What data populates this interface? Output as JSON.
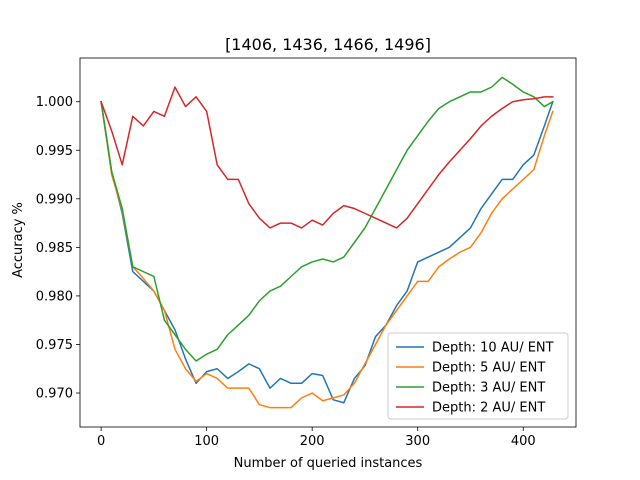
{
  "chart_data": {
    "type": "line",
    "title": "[1406, 1436, 1466, 1496]",
    "xlabel": "Number of queried instances",
    "ylabel": "Accuracy %",
    "xlim": [
      -20,
      450
    ],
    "ylim": [
      0.9665,
      1.0045
    ],
    "xticks": [
      0,
      100,
      200,
      300,
      400
    ],
    "yticks": [
      0.97,
      0.975,
      0.98,
      0.985,
      0.99,
      0.995,
      1.0
    ],
    "ytick_labels": [
      "0.970",
      "0.975",
      "0.980",
      "0.985",
      "0.990",
      "0.995",
      "1.000"
    ],
    "grid": false,
    "legend_position": "lower-right",
    "series": [
      {
        "name": "Depth: 10 AU/ ENT",
        "color": "#1f77b4",
        "x": [
          0,
          10,
          20,
          30,
          40,
          50,
          60,
          70,
          80,
          90,
          100,
          110,
          120,
          130,
          140,
          150,
          160,
          170,
          180,
          190,
          200,
          210,
          220,
          230,
          240,
          250,
          260,
          270,
          280,
          290,
          300,
          310,
          320,
          330,
          340,
          350,
          360,
          370,
          380,
          390,
          400,
          410,
          420,
          428
        ],
        "y": [
          1.0,
          0.9928,
          0.9885,
          0.9825,
          0.9815,
          0.9805,
          0.9785,
          0.9765,
          0.9735,
          0.971,
          0.9722,
          0.9725,
          0.9715,
          0.9722,
          0.973,
          0.9725,
          0.9705,
          0.9715,
          0.971,
          0.971,
          0.972,
          0.9718,
          0.9693,
          0.969,
          0.9715,
          0.9728,
          0.9758,
          0.977,
          0.979,
          0.9805,
          0.9835,
          0.984,
          0.9845,
          0.985,
          0.986,
          0.987,
          0.989,
          0.9905,
          0.992,
          0.992,
          0.9935,
          0.9945,
          0.9975,
          1.0
        ]
      },
      {
        "name": "Depth: 5 AU/ ENT",
        "color": "#ff7f0e",
        "x": [
          0,
          10,
          20,
          30,
          40,
          50,
          60,
          70,
          80,
          90,
          100,
          110,
          120,
          130,
          140,
          150,
          160,
          170,
          180,
          190,
          200,
          210,
          220,
          230,
          240,
          250,
          260,
          270,
          280,
          290,
          300,
          310,
          320,
          330,
          340,
          350,
          360,
          370,
          380,
          390,
          400,
          410,
          420,
          428
        ],
        "y": [
          1.0,
          0.9925,
          0.9888,
          0.983,
          0.9818,
          0.9805,
          0.9785,
          0.9745,
          0.9725,
          0.9712,
          0.972,
          0.9715,
          0.9705,
          0.9705,
          0.9705,
          0.9688,
          0.9685,
          0.9685,
          0.9685,
          0.9695,
          0.97,
          0.9692,
          0.9695,
          0.9698,
          0.971,
          0.973,
          0.975,
          0.977,
          0.9785,
          0.98,
          0.9815,
          0.9815,
          0.983,
          0.9838,
          0.9845,
          0.985,
          0.9865,
          0.9885,
          0.99,
          0.991,
          0.992,
          0.993,
          0.9965,
          0.999
        ]
      },
      {
        "name": "Depth: 3 AU/ ENT",
        "color": "#2ca02c",
        "x": [
          0,
          10,
          20,
          30,
          40,
          50,
          60,
          70,
          80,
          90,
          100,
          110,
          120,
          130,
          140,
          150,
          160,
          170,
          180,
          190,
          200,
          210,
          220,
          230,
          240,
          250,
          260,
          270,
          280,
          290,
          300,
          310,
          320,
          330,
          340,
          350,
          360,
          370,
          380,
          390,
          400,
          410,
          420,
          428
        ],
        "y": [
          1.0,
          0.9928,
          0.989,
          0.983,
          0.9825,
          0.982,
          0.9775,
          0.976,
          0.9745,
          0.9733,
          0.974,
          0.9745,
          0.976,
          0.977,
          0.978,
          0.9795,
          0.9805,
          0.981,
          0.982,
          0.983,
          0.9835,
          0.9838,
          0.9835,
          0.984,
          0.9855,
          0.987,
          0.989,
          0.991,
          0.993,
          0.995,
          0.9965,
          0.998,
          0.9993,
          1.0,
          1.0005,
          1.001,
          1.001,
          1.0015,
          1.0025,
          1.0018,
          1.001,
          1.0005,
          0.9995,
          1.0
        ]
      },
      {
        "name": "Depth: 2 AU/ ENT",
        "color": "#d62728",
        "x": [
          0,
          10,
          20,
          30,
          40,
          50,
          60,
          70,
          80,
          90,
          100,
          110,
          120,
          130,
          140,
          150,
          160,
          170,
          180,
          190,
          200,
          210,
          220,
          230,
          240,
          250,
          260,
          270,
          280,
          290,
          300,
          310,
          320,
          330,
          340,
          350,
          360,
          370,
          380,
          390,
          400,
          410,
          420,
          428
        ],
        "y": [
          1.0,
          0.997,
          0.9935,
          0.9985,
          0.9975,
          0.999,
          0.9985,
          1.0015,
          0.9995,
          1.0005,
          0.999,
          0.9935,
          0.992,
          0.992,
          0.9895,
          0.988,
          0.987,
          0.9875,
          0.9875,
          0.987,
          0.9878,
          0.9873,
          0.9885,
          0.9893,
          0.989,
          0.9885,
          0.988,
          0.9875,
          0.987,
          0.988,
          0.9895,
          0.991,
          0.9925,
          0.9938,
          0.995,
          0.9962,
          0.9975,
          0.9985,
          0.9993,
          1.0,
          1.0002,
          1.0003,
          1.0005,
          1.0005
        ]
      }
    ]
  }
}
